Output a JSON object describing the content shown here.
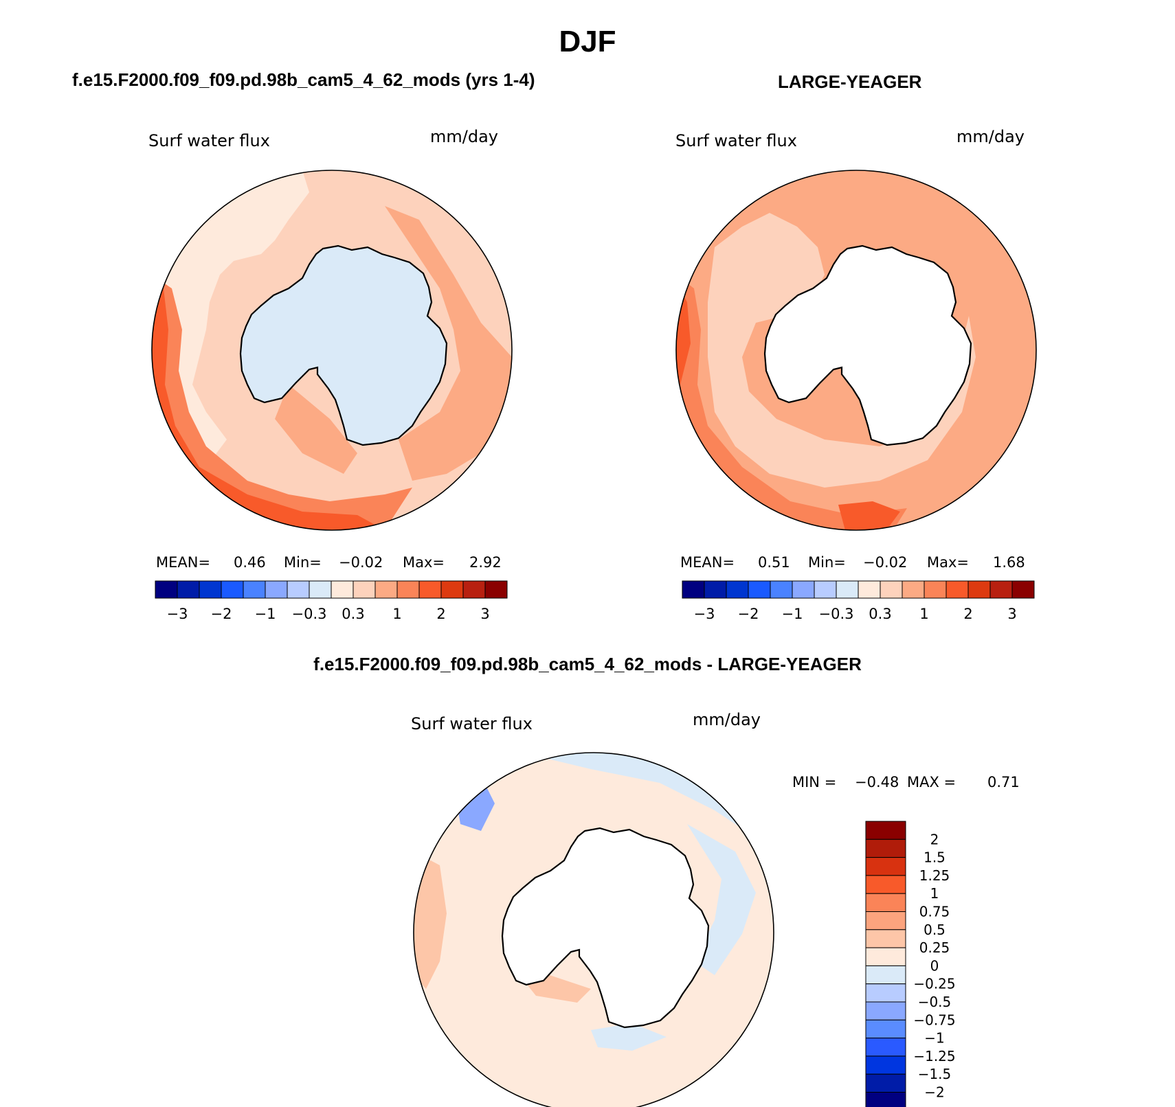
{
  "page": {
    "title": "DJF",
    "background": "#ffffff"
  },
  "panels": [
    {
      "heading": "f.e15.F2000.f09_f09.pd.98b_cam5_4_62_mods (yrs 1-4)",
      "variable": "Surf water flux",
      "units": "mm/day",
      "stats": {
        "mean_label": "MEAN=",
        "mean": "0.46",
        "min_label": "Min=",
        "min": "−0.02",
        "max_label": "Max=",
        "max": "2.92"
      },
      "colorbar": {
        "colors": [
          "#000080",
          "#001ca8",
          "#0036d0",
          "#1a5aff",
          "#4a82ff",
          "#8aa8ff",
          "#b8ccff",
          "#daeaf8",
          "#feeadc",
          "#fdd2bc",
          "#fcaa84",
          "#fa8458",
          "#f85a2a",
          "#dd3a10",
          "#b82010",
          "#8a0000"
        ],
        "labels": [
          "−3",
          "−2",
          "−1",
          "−0.3",
          "0.3",
          "1",
          "2",
          "3"
        ]
      },
      "land_color": "#daeaf8"
    },
    {
      "heading": "LARGE-YEAGER",
      "variable": "Surf water flux",
      "units": "mm/day",
      "stats": {
        "mean_label": "MEAN=",
        "mean": "0.51",
        "min_label": "Min=",
        "min": "−0.02",
        "max_label": "Max=",
        "max": "1.68"
      },
      "colorbar": {
        "colors": [
          "#000080",
          "#001ca8",
          "#0036d0",
          "#1a5aff",
          "#4a82ff",
          "#8aa8ff",
          "#b8ccff",
          "#daeaf8",
          "#feeadc",
          "#fdd2bc",
          "#fcaa84",
          "#fa8458",
          "#f85a2a",
          "#dd3a10",
          "#b82010",
          "#8a0000"
        ],
        "labels": [
          "−3",
          "−2",
          "−1",
          "−0.3",
          "0.3",
          "1",
          "2",
          "3"
        ]
      },
      "land_color": "#ffffff"
    },
    {
      "heading": "f.e15.F2000.f09_f09.pd.98b_cam5_4_62_mods - LARGE-YEAGER",
      "variable": "Surf water flux",
      "units": "mm/day",
      "stats": {
        "min_label": "MIN =",
        "min": "−0.48",
        "max_label": "MAX =",
        "max": "0.71"
      },
      "colorbar": {
        "colors_top_to_bottom": [
          "#8a0000",
          "#b01c0a",
          "#d83210",
          "#f85a2a",
          "#fa8458",
          "#fca47e",
          "#fdc6a8",
          "#feeadc",
          "#daeaf8",
          "#b8ccff",
          "#8aa8ff",
          "#5a8cff",
          "#2a5aff",
          "#0036e0",
          "#001ca8",
          "#000080"
        ],
        "labels": [
          "2",
          "1.5",
          "1.25",
          "1",
          "0.75",
          "0.5",
          "0.25",
          "0",
          "−0.25",
          "−0.5",
          "−0.75",
          "−1",
          "−1.25",
          "−1.5",
          "−2"
        ]
      },
      "land_color": "#ffffff"
    }
  ]
}
